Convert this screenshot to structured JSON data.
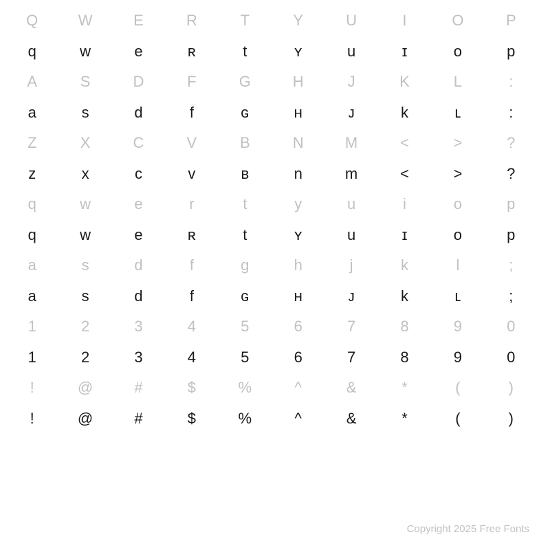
{
  "rows": [
    {
      "tone": "light",
      "cells": [
        "Q",
        "W",
        "E",
        "R",
        "T",
        "Y",
        "U",
        "I",
        "O",
        "P"
      ]
    },
    {
      "tone": "dark",
      "cells": [
        "q",
        "w",
        "e",
        "ʀ",
        "t",
        "ʏ",
        "u",
        "ɪ",
        "o",
        "p"
      ]
    },
    {
      "tone": "light",
      "cells": [
        "A",
        "S",
        "D",
        "F",
        "G",
        "H",
        "J",
        "K",
        "L",
        ":"
      ]
    },
    {
      "tone": "dark",
      "cells": [
        "a",
        "s",
        "d",
        "f",
        "ɢ",
        "ʜ",
        "ᴊ",
        "k",
        "ʟ",
        ":"
      ]
    },
    {
      "tone": "light",
      "cells": [
        "Z",
        "X",
        "C",
        "V",
        "B",
        "N",
        "M",
        "<",
        ">",
        "?"
      ]
    },
    {
      "tone": "dark",
      "cells": [
        "z",
        "x",
        "c",
        "v",
        "ʙ",
        "n",
        "m",
        "<",
        ">",
        "?"
      ]
    },
    {
      "tone": "light",
      "cells": [
        "q",
        "w",
        "e",
        "r",
        "t",
        "y",
        "u",
        "i",
        "o",
        "p"
      ]
    },
    {
      "tone": "dark",
      "cells": [
        "q",
        "w",
        "e",
        "ʀ",
        "t",
        "ʏ",
        "u",
        "ɪ",
        "o",
        "p"
      ]
    },
    {
      "tone": "light",
      "cells": [
        "a",
        "s",
        "d",
        "f",
        "g",
        "h",
        "j",
        "k",
        "l",
        ";"
      ]
    },
    {
      "tone": "dark",
      "cells": [
        "a",
        "s",
        "d",
        "f",
        "ɢ",
        "ʜ",
        "ᴊ",
        "k",
        "ʟ",
        ";"
      ]
    },
    {
      "tone": "light",
      "cells": [
        "1",
        "2",
        "3",
        "4",
        "5",
        "6",
        "7",
        "8",
        "9",
        "0"
      ]
    },
    {
      "tone": "dark",
      "cells": [
        "1",
        "2",
        "3",
        "4",
        "5",
        "6",
        "7",
        "8",
        "9",
        "0"
      ]
    },
    {
      "tone": "light",
      "cells": [
        "!",
        "@",
        "#",
        "$",
        "%",
        "^",
        "&",
        "*",
        "(",
        ")"
      ]
    },
    {
      "tone": "dark",
      "cells": [
        "!",
        "@",
        "#",
        "$",
        "%",
        "^",
        "&",
        "*",
        "(",
        ")"
      ]
    }
  ],
  "footer_text": "Copyright 2025 Free Fonts",
  "colors": {
    "light": "#c1c1c1",
    "dark": "#1a1a1a",
    "background": "#ffffff"
  },
  "cell_font_size": 22,
  "footer_font_size": 15
}
